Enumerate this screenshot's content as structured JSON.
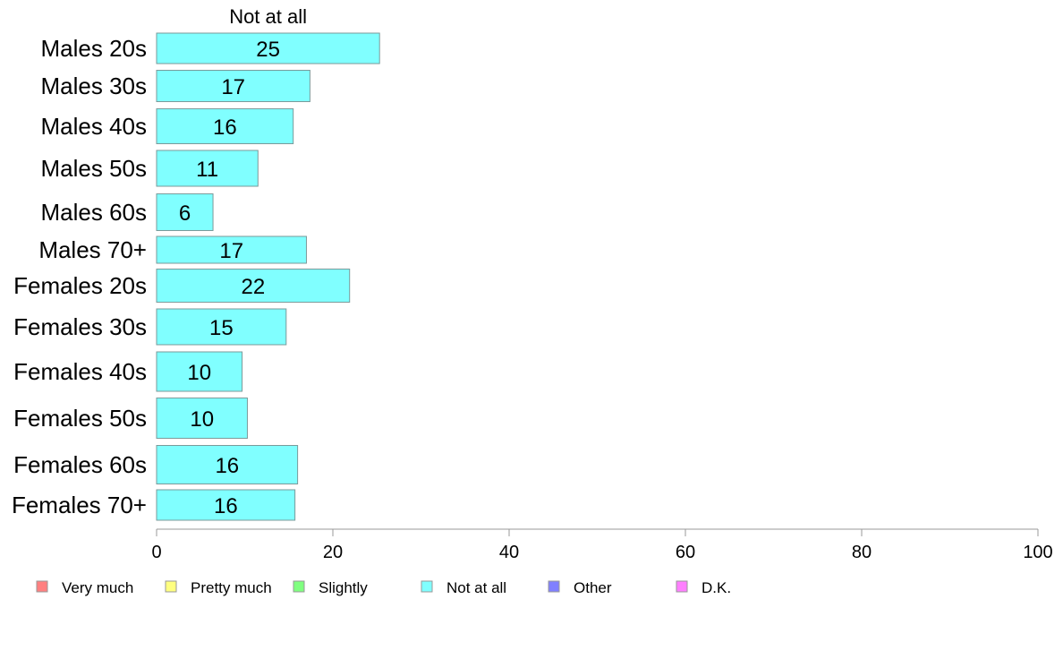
{
  "chart_data": {
    "type": "bar",
    "orientation": "horizontal",
    "stacked": true,
    "categories": [
      "Males 20s",
      "Males 30s",
      "Males 40s",
      "Males 50s",
      "Males 60s",
      "Males 70+",
      "Females 20s",
      "Females 30s",
      "Females 40s",
      "Females 50s",
      "Females 60s",
      "Females 70+"
    ],
    "series": [
      {
        "name": "Not at all",
        "values": [
          25,
          17,
          16,
          11,
          6,
          17,
          22,
          15,
          10,
          10,
          16,
          16
        ],
        "display_values": [
          25.3,
          17.4,
          15.5,
          11.5,
          6.4,
          17.0,
          21.9,
          14.7,
          9.7,
          10.3,
          16.0,
          15.7
        ],
        "color": "#80ffff"
      }
    ],
    "series_header": "Not at all",
    "xlim": [
      0,
      100
    ],
    "xticks": [
      0,
      20,
      40,
      60,
      80,
      100
    ],
    "grid": false,
    "legend": {
      "position": "bottom",
      "items": [
        {
          "label": "Very much",
          "color": "#ff8080"
        },
        {
          "label": "Pretty much",
          "color": "#ffff80"
        },
        {
          "label": "Slightly",
          "color": "#80ff80"
        },
        {
          "label": "Not at all",
          "color": "#80ffff"
        },
        {
          "label": "Other",
          "color": "#8080ff"
        },
        {
          "label": "D.K.",
          "color": "#ff80ff"
        }
      ]
    }
  }
}
